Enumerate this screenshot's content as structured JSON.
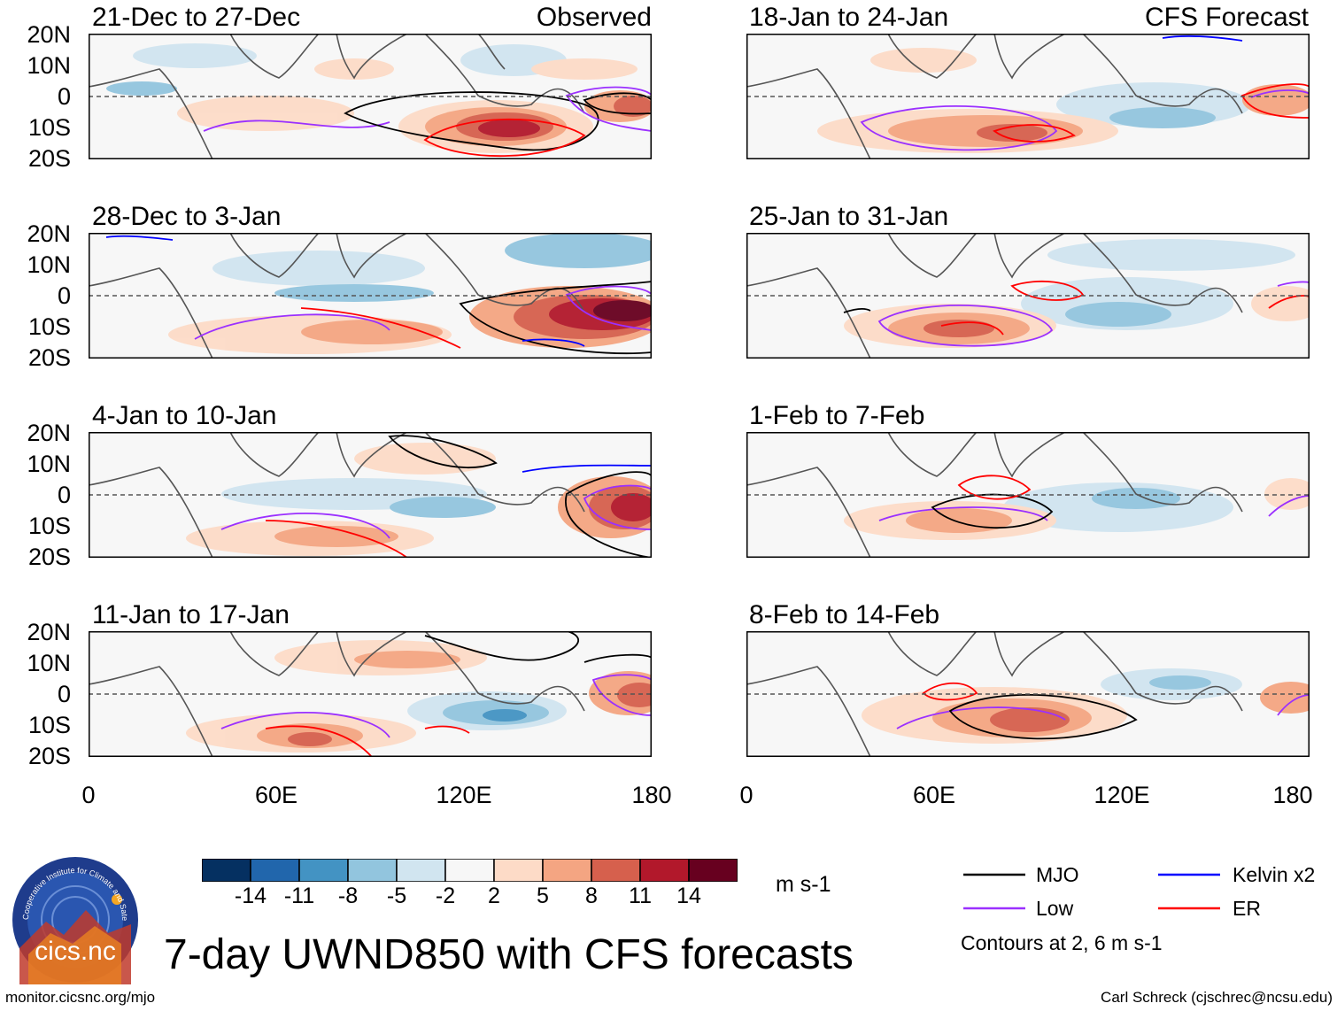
{
  "main_title": "7-day UWND850 with CFS forecasts",
  "observed_label": "Observed",
  "forecast_label": "CFS Forecast",
  "panels": [
    {
      "title": "21-Dec to 27-Dec"
    },
    {
      "title": "28-Dec to 3-Jan"
    },
    {
      "title": "4-Jan to 10-Jan"
    },
    {
      "title": "11-Jan to 17-Jan"
    },
    {
      "title": "18-Jan to 24-Jan"
    },
    {
      "title": "25-Jan to 31-Jan"
    },
    {
      "title": "1-Feb to 7-Feb"
    },
    {
      "title": "8-Feb to 14-Feb"
    }
  ],
  "lat_labels": [
    "20N",
    "10N",
    "0",
    "10S",
    "20S"
  ],
  "lon_labels": [
    "0",
    "60E",
    "120E",
    "180"
  ],
  "colorbar": {
    "ticks": [
      "-14",
      "-11",
      "-8",
      "-5",
      "-2",
      "2",
      "5",
      "8",
      "11",
      "14"
    ],
    "colors": [
      "#053061",
      "#2166ac",
      "#4393c3",
      "#92c5de",
      "#d1e5f0",
      "#f7f7f7",
      "#fddbc7",
      "#f4a582",
      "#d6604d",
      "#b2182b",
      "#67001f"
    ],
    "units": "m s-1"
  },
  "legend": {
    "items": [
      {
        "label": "MJO",
        "color": "#000000"
      },
      {
        "label": "Kelvin x2",
        "color": "#0000ff"
      },
      {
        "label": "Low",
        "color": "#9b30ff"
      },
      {
        "label": "ER",
        "color": "#ff0000"
      }
    ],
    "contour_note": "Contours at 2, 6 m s-1"
  },
  "logo": {
    "text": "cics.nc",
    "ring_text": "Cooperative Institute for Climate and Satellites"
  },
  "footer": {
    "left": "monitor.cicsnc.org/mjo",
    "right": "Carl Schreck (cjschrec@ncsu.edu)"
  }
}
